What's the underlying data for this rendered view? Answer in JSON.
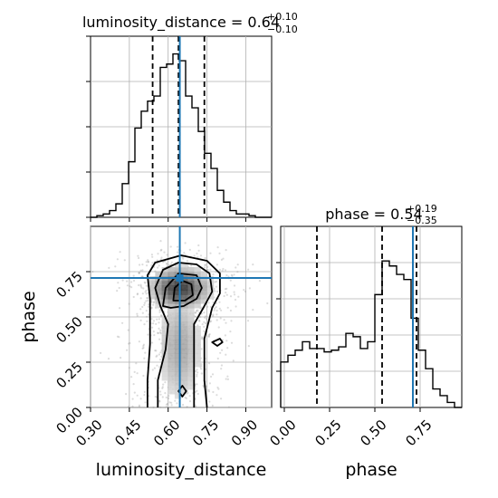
{
  "chart_data": [
    {
      "type": "histogram",
      "param": "luminosity_distance",
      "title": {
        "lhs": "luminosity_distance = 0.64",
        "sup": "+0.10",
        "sub": "−0.10"
      },
      "xlim": [
        0.3,
        1.0
      ],
      "ylim": [
        0,
        1.0
      ],
      "bin_edges": [
        0.3,
        0.3245,
        0.349,
        0.3735,
        0.398,
        0.4225,
        0.447,
        0.4715,
        0.496,
        0.5205,
        0.545,
        0.5695,
        0.594,
        0.6185,
        0.643,
        0.6675,
        0.692,
        0.7165,
        0.741,
        0.7655,
        0.79,
        0.8145,
        0.839,
        0.8635,
        0.888,
        0.9125,
        0.937,
        0.9615,
        0.986,
        1.0
      ],
      "counts": [
        0.0,
        0.01,
        0.02,
        0.04,
        0.08,
        0.2,
        0.33,
        0.53,
        0.63,
        0.69,
        0.72,
        0.89,
        0.91,
        0.97,
        0.93,
        0.72,
        0.65,
        0.51,
        0.38,
        0.29,
        0.16,
        0.09,
        0.04,
        0.02,
        0.02,
        0.01,
        0.0,
        0.0,
        0.0
      ],
      "quantiles": [
        0.54,
        0.64,
        0.74
      ],
      "truth": 0.645,
      "grid": true,
      "color_truth": "#1f77b4"
    },
    {
      "type": "histogram",
      "param": "phase",
      "title": {
        "lhs": "phase = 0.54",
        "sup": "+0.19",
        "sub": "−0.35"
      },
      "xlim": [
        -0.02,
        0.98
      ],
      "ylim": [
        0,
        1.0
      ],
      "xlabel": "phase",
      "bin_edges": [
        -0.02,
        0.02,
        0.06,
        0.1,
        0.14,
        0.18,
        0.22,
        0.26,
        0.3,
        0.34,
        0.38,
        0.42,
        0.46,
        0.5,
        0.54,
        0.58,
        0.62,
        0.66,
        0.7,
        0.74,
        0.78,
        0.82,
        0.86,
        0.9,
        0.94,
        0.98
      ],
      "counts": [
        0.27,
        0.31,
        0.34,
        0.39,
        0.35,
        0.35,
        0.33,
        0.34,
        0.36,
        0.44,
        0.42,
        0.35,
        0.39,
        0.67,
        0.87,
        0.84,
        0.79,
        0.76,
        0.53,
        0.34,
        0.23,
        0.11,
        0.07,
        0.03,
        0.0
      ],
      "ticks": [
        0.0,
        0.25,
        0.5,
        0.75
      ],
      "tick_labels": [
        "0.00",
        "0.25",
        "0.50",
        "0.75"
      ],
      "quantiles": [
        0.18,
        0.54,
        0.73
      ],
      "truth": 0.71,
      "grid": true,
      "color_truth": "#1f77b4"
    },
    {
      "type": "heatmap",
      "x_param": "luminosity_distance",
      "y_param": "phase",
      "xlabel": "luminosity_distance",
      "ylabel": "phase",
      "xlim": [
        0.3,
        1.0
      ],
      "ylim": [
        0.0,
        1.0
      ],
      "xticks": [
        0.3,
        0.45,
        0.6,
        0.75,
        0.9
      ],
      "xtick_labels": [
        "0.30",
        "0.45",
        "0.60",
        "0.75",
        "0.90"
      ],
      "yticks": [
        0.0,
        0.25,
        0.5,
        0.75
      ],
      "ytick_labels": [
        "0.00",
        "0.25",
        "0.50",
        "0.75"
      ],
      "truth": [
        0.645,
        0.715
      ],
      "grid": true,
      "color_truth": "#1f77b4",
      "contours": [
        {
          "level": "outer",
          "points": [
            [
              0.52,
              0.0
            ],
            [
              0.52,
              0.15
            ],
            [
              0.53,
              0.35
            ],
            [
              0.53,
              0.6
            ],
            [
              0.52,
              0.73
            ],
            [
              0.55,
              0.8
            ],
            [
              0.65,
              0.84
            ],
            [
              0.75,
              0.81
            ],
            [
              0.8,
              0.74
            ],
            [
              0.8,
              0.63
            ],
            [
              0.77,
              0.55
            ],
            [
              0.74,
              0.38
            ],
            [
              0.74,
              0.15
            ],
            [
              0.75,
              0.0
            ]
          ]
        },
        {
          "level": "middle",
          "points": [
            [
              0.56,
              0.0
            ],
            [
              0.56,
              0.15
            ],
            [
              0.59,
              0.32
            ],
            [
              0.6,
              0.46
            ],
            [
              0.57,
              0.56
            ],
            [
              0.55,
              0.66
            ],
            [
              0.58,
              0.76
            ],
            [
              0.64,
              0.8
            ],
            [
              0.71,
              0.79
            ],
            [
              0.76,
              0.74
            ],
            [
              0.77,
              0.64
            ],
            [
              0.74,
              0.56
            ],
            [
              0.7,
              0.46
            ],
            [
              0.7,
              0.24
            ],
            [
              0.7,
              0.0
            ]
          ]
        },
        {
          "level": "inner",
          "points": [
            [
              0.58,
              0.56
            ],
            [
              0.59,
              0.66
            ],
            [
              0.64,
              0.74
            ],
            [
              0.71,
              0.73
            ],
            [
              0.73,
              0.66
            ],
            [
              0.71,
              0.6
            ],
            [
              0.66,
              0.56
            ],
            [
              0.61,
              0.55
            ]
          ]
        },
        {
          "level": "core",
          "points": [
            [
              0.62,
              0.59
            ],
            [
              0.625,
              0.66
            ],
            [
              0.655,
              0.7
            ],
            [
              0.69,
              0.68
            ],
            [
              0.695,
              0.62
            ],
            [
              0.665,
              0.59
            ]
          ]
        },
        {
          "level": "blob",
          "points": [
            [
              0.64,
              0.09
            ],
            [
              0.655,
              0.12
            ],
            [
              0.67,
              0.09
            ],
            [
              0.655,
              0.06
            ]
          ]
        },
        {
          "level": "blob",
          "points": [
            [
              0.77,
              0.36
            ],
            [
              0.8,
              0.38
            ],
            [
              0.81,
              0.36
            ],
            [
              0.79,
              0.34
            ]
          ]
        }
      ]
    }
  ]
}
